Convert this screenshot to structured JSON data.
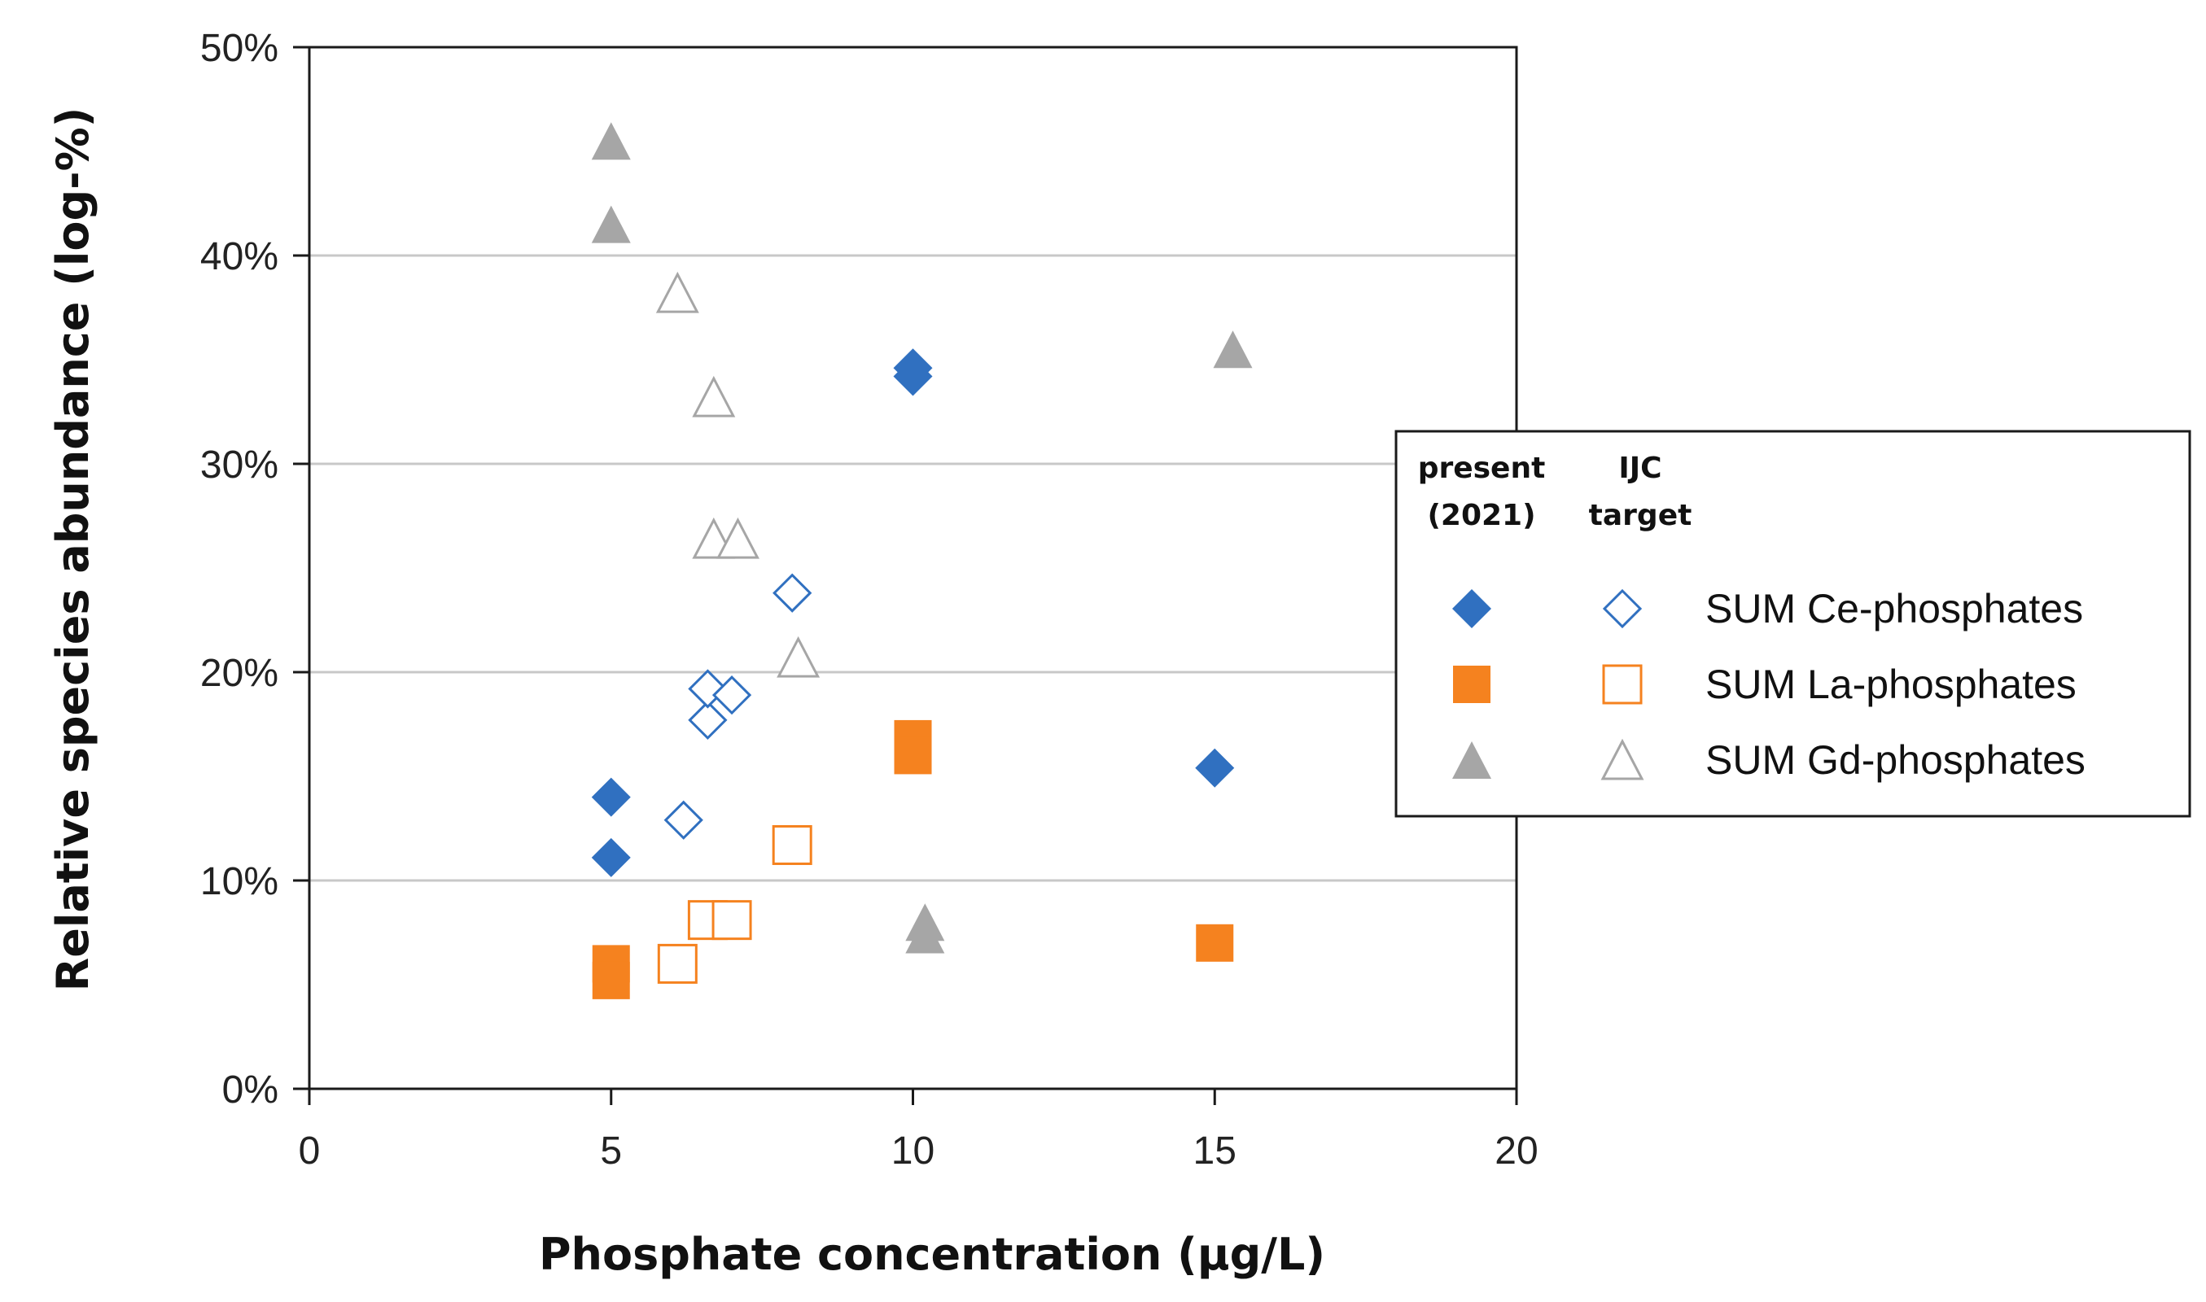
{
  "chart_data": {
    "type": "scatter",
    "title": "",
    "xlabel": "Phosphate concentration (µg/L)",
    "ylabel": "Relative species abundance (log-%)",
    "xlim": [
      0,
      20
    ],
    "ylim": [
      0,
      50
    ],
    "x_ticks": [
      "0",
      "5",
      "10",
      "15",
      "20"
    ],
    "y_ticks": [
      "0%",
      "10%",
      "20%",
      "30%",
      "40%",
      "50%"
    ],
    "grid": "horizontal",
    "legend": {
      "placement": "right",
      "header_present_line1": "present",
      "header_present_line2": "(2021)",
      "header_ijc_line1": "IJC",
      "header_ijc_line2": "target",
      "entries": [
        {
          "label": "SUM Ce-phosphates",
          "marker": "diamond",
          "color": "#3070c0"
        },
        {
          "label": "SUM La-phosphates",
          "marker": "square",
          "color": "#f5821f"
        },
        {
          "label": "SUM Gd-phosphates",
          "marker": "triangle",
          "color": "#a6a6a6"
        }
      ]
    },
    "series": [
      {
        "name": "SUM Ce-phosphates (present 2021)",
        "marker": "diamond",
        "filled": true,
        "color": "#3070c0",
        "points": [
          [
            5,
            14.0
          ],
          [
            5,
            11.1
          ],
          [
            10,
            34.6
          ],
          [
            10,
            34.2
          ],
          [
            15,
            15.4
          ]
        ]
      },
      {
        "name": "SUM Ce-phosphates (IJC target)",
        "marker": "diamond",
        "filled": false,
        "color": "#3070c0",
        "points": [
          [
            6.2,
            12.9
          ],
          [
            6.6,
            17.7
          ],
          [
            6.6,
            19.2
          ],
          [
            7.0,
            18.9
          ],
          [
            8.0,
            23.8
          ]
        ]
      },
      {
        "name": "SUM La-phosphates (present 2021)",
        "marker": "square",
        "filled": true,
        "color": "#f5821f",
        "points": [
          [
            5,
            6.0
          ],
          [
            5,
            5.2
          ],
          [
            10,
            16.8
          ],
          [
            10,
            16.0
          ],
          [
            15,
            7.0
          ]
        ]
      },
      {
        "name": "SUM La-phosphates (IJC target)",
        "marker": "square",
        "filled": false,
        "color": "#f5821f",
        "points": [
          [
            6.1,
            6.0
          ],
          [
            6.6,
            8.1
          ],
          [
            7.0,
            8.1
          ],
          [
            8.0,
            11.7
          ]
        ]
      },
      {
        "name": "SUM Gd-phosphates (present 2021)",
        "marker": "triangle",
        "filled": true,
        "color": "#a6a6a6",
        "points": [
          [
            5,
            45.5
          ],
          [
            5,
            41.5
          ],
          [
            10.2,
            8.0
          ],
          [
            10.2,
            7.4
          ],
          [
            15.3,
            35.5
          ]
        ]
      },
      {
        "name": "SUM Gd-phosphates (IJC target)",
        "marker": "triangle",
        "filled": false,
        "color": "#a6a6a6",
        "points": [
          [
            6.1,
            38.2
          ],
          [
            6.7,
            33.2
          ],
          [
            6.7,
            26.4
          ],
          [
            7.1,
            26.4
          ],
          [
            8.1,
            20.7
          ]
        ]
      }
    ]
  }
}
